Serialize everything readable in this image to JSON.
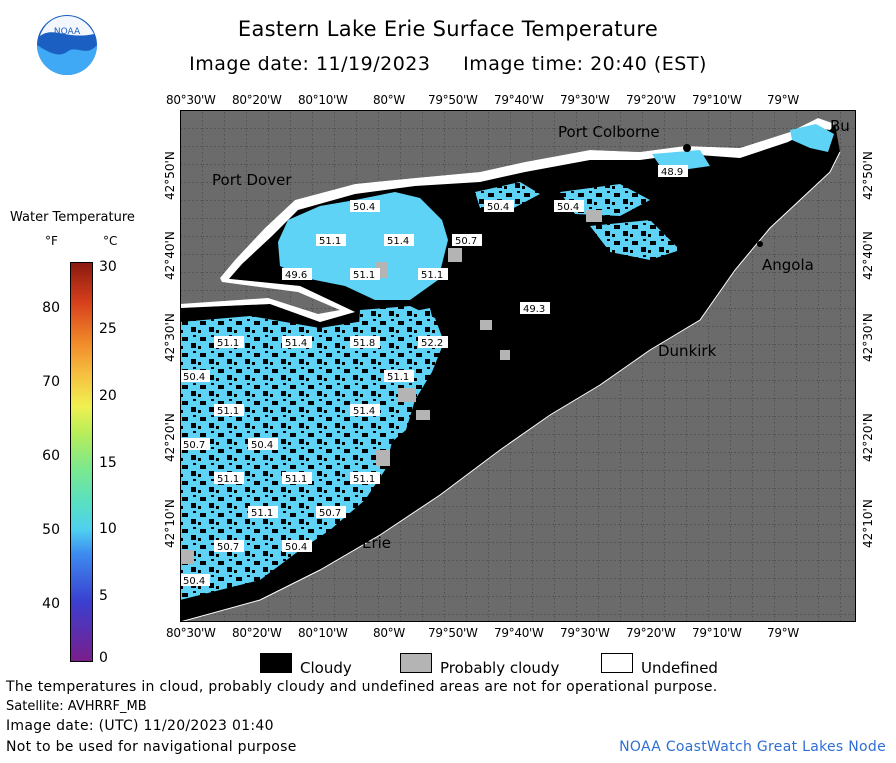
{
  "header": {
    "title": "Eastern Lake Erie Surface Temperature",
    "image_date": "Image date: 11/19/2023",
    "image_time": "Image time: 20:40 (EST)"
  },
  "logo": {
    "text": "NOAA",
    "icon": "noaa-logo-icon"
  },
  "colorbar": {
    "title": "Water Temperature",
    "unit_f": "°F",
    "unit_c": "°C",
    "f_ticks": [
      "40",
      "50",
      "60",
      "70",
      "80"
    ],
    "c_ticks": [
      "0",
      "5",
      "10",
      "15",
      "20",
      "25",
      "30"
    ]
  },
  "map": {
    "lon_labels": [
      "80°30'W",
      "80°20'W",
      "80°10'W",
      "80°W",
      "79°50'W",
      "79°40'W",
      "79°30'W",
      "79°20'W",
      "79°10'W",
      "79°W"
    ],
    "lat_labels": [
      "42°50'N",
      "42°40'N",
      "42°30'N",
      "42°20'N",
      "42°10'N"
    ],
    "cities": {
      "port_colborne": "Port Colborne",
      "port_dover": "Port Dover",
      "angola": "Angola",
      "dunkirk": "Dunkirk",
      "erie": "Erie",
      "buffalo": "Bu"
    },
    "temperature_labels": [
      "48.9",
      "50.4",
      "50.4",
      "50.4",
      "51.1",
      "51.4",
      "50.7",
      "49.6",
      "51.1",
      "51.1",
      "49.3",
      "51.1",
      "51.4",
      "51.8",
      "52.2",
      "50.4",
      "51.1",
      "51.1",
      "51.4",
      "50.7",
      "50.4",
      "51.1",
      "51.1",
      "51.1",
      "51.1",
      "50.7",
      "50.7",
      "50.4",
      "50.4"
    ],
    "colors": {
      "land": "#6b6b6b",
      "cloud": "#000000",
      "probably_cloudy": "#b4b4b4",
      "undefined": "#ffffff",
      "water_cyan": "#5fd3f5"
    }
  },
  "legend": {
    "cloudy": "Cloudy",
    "probably_cloudy": "Probably cloudy",
    "undefined": "Undefined"
  },
  "footer": {
    "note": "The temperatures in cloud, probably cloudy and undefined areas are not for operational purpose.",
    "satellite": "Satellite: AVHRRF_MB",
    "utc_date": "Image date: (UTC) 11/20/2023  01:40",
    "nav_warning": "Not to be used for navigational purpose",
    "credit": "NOAA CoastWatch Great Lakes Node"
  }
}
